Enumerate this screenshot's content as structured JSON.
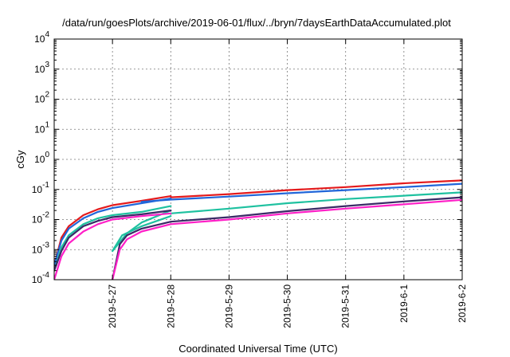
{
  "chart_data": {
    "type": "line",
    "title": "/data/run/goesPlots/archive/2019-06-01/flux/../bryn/7daysEarthDataAccumulated.plot",
    "xlabel": "Coordinated Universal Time (UTC)",
    "ylabel": "cGy",
    "y_scale": "log",
    "ylim": [
      0.0001,
      10000
    ],
    "xlim": [
      "2019-05-26",
      "2019-06-02"
    ],
    "grid": true,
    "legend": "none",
    "x_ticks": [
      "2019-5-27",
      "2019-5-28",
      "2019-5-29",
      "2019-5-30",
      "2019-5-31",
      "2019-6-1",
      "2019-6-2"
    ],
    "y_ticks": [
      {
        "value": 0.0001,
        "base": "10",
        "exp": "-4"
      },
      {
        "value": 0.001,
        "base": "10",
        "exp": "-3"
      },
      {
        "value": 0.01,
        "base": "10",
        "exp": "-2"
      },
      {
        "value": 0.1,
        "base": "10",
        "exp": "-1"
      },
      {
        "value": 1,
        "base": "10",
        "exp": "0"
      },
      {
        "value": 10,
        "base": "10",
        "exp": "1"
      },
      {
        "value": 100,
        "base": "10",
        "exp": "2"
      },
      {
        "value": 1000,
        "base": "10",
        "exp": "3"
      },
      {
        "value": 10000,
        "base": "10",
        "exp": "4"
      }
    ],
    "series": [
      {
        "color": "#e41a1c",
        "segments": [
          [
            [
              "2019-05-26T00:00",
              0.0003
            ],
            [
              "2019-05-26T03:00",
              0.0025
            ],
            [
              "2019-05-26T06:00",
              0.006
            ],
            [
              "2019-05-26T12:00",
              0.014
            ],
            [
              "2019-05-26T18:00",
              0.022
            ],
            [
              "2019-05-27T00:00",
              0.03
            ],
            [
              "2019-05-27T12:00",
              0.042
            ],
            [
              "2019-05-28T00:00",
              0.06
            ]
          ],
          [
            [
              "2019-05-28T00:00",
              0.055
            ],
            [
              "2019-05-29T00:00",
              0.07
            ],
            [
              "2019-05-30T00:00",
              0.095
            ],
            [
              "2019-05-31T00:00",
              0.12
            ],
            [
              "2019-06-01T00:00",
              0.16
            ],
            [
              "2019-06-02T00:00",
              0.2
            ]
          ]
        ]
      },
      {
        "color": "#2166d9",
        "segments": [
          [
            [
              "2019-05-26T00:00",
              0.0003
            ],
            [
              "2019-05-26T03:00",
              0.002
            ],
            [
              "2019-05-26T06:00",
              0.005
            ],
            [
              "2019-05-26T12:00",
              0.011
            ],
            [
              "2019-05-26T18:00",
              0.018
            ],
            [
              "2019-05-27T00:00",
              0.024
            ],
            [
              "2019-05-27T12:00",
              0.035
            ],
            [
              "2019-05-28T00:00",
              0.05
            ]
          ],
          [
            [
              "2019-05-27T12:00",
              0.039
            ],
            [
              "2019-05-28T00:00",
              0.046
            ],
            [
              "2019-05-29T00:00",
              0.058
            ],
            [
              "2019-05-30T00:00",
              0.075
            ],
            [
              "2019-05-31T00:00",
              0.095
            ],
            [
              "2019-06-01T00:00",
              0.12
            ],
            [
              "2019-06-02T00:00",
              0.155
            ]
          ]
        ]
      },
      {
        "color": "#1fc1a0",
        "segments": [
          [
            [
              "2019-05-26T00:00",
              0.0002
            ],
            [
              "2019-05-26T03:00",
              0.0012
            ],
            [
              "2019-05-26T06:00",
              0.003
            ],
            [
              "2019-05-26T12:00",
              0.007
            ],
            [
              "2019-05-26T18:00",
              0.011
            ],
            [
              "2019-05-27T00:00",
              0.014
            ],
            [
              "2019-05-27T12:00",
              0.018
            ],
            [
              "2019-05-28T00:00",
              0.028
            ]
          ],
          [
            [
              "2019-05-27T00:00",
              0.0009
            ],
            [
              "2019-05-27T04:00",
              0.003
            ],
            [
              "2019-05-27T12:00",
              0.006
            ],
            [
              "2019-05-28T00:00",
              0.013
            ]
          ],
          [
            [
              "2019-05-27T00:00",
              0.0009
            ],
            [
              "2019-05-27T06:00",
              0.0035
            ],
            [
              "2019-05-27T12:00",
              0.008
            ],
            [
              "2019-05-28T00:00",
              0.02
            ]
          ],
          [
            [
              "2019-05-28T00:00",
              0.016
            ],
            [
              "2019-05-29T00:00",
              0.023
            ],
            [
              "2019-05-30T00:00",
              0.035
            ],
            [
              "2019-05-31T00:00",
              0.048
            ],
            [
              "2019-06-01T00:00",
              0.062
            ],
            [
              "2019-06-02T00:00",
              0.08
            ]
          ]
        ]
      },
      {
        "color": "#3a2a66",
        "segments": [
          [
            [
              "2019-05-26T00:00",
              0.0002
            ],
            [
              "2019-05-26T03:00",
              0.0009
            ],
            [
              "2019-05-26T06:00",
              0.0025
            ],
            [
              "2019-05-26T12:00",
              0.006
            ],
            [
              "2019-05-26T18:00",
              0.009
            ],
            [
              "2019-05-27T00:00",
              0.012
            ],
            [
              "2019-05-27T12:00",
              0.015
            ],
            [
              "2019-05-28T00:00",
              0.02
            ]
          ],
          [
            [
              "2019-05-27T00:00",
              0.0001
            ],
            [
              "2019-05-27T03:00",
              0.0015
            ],
            [
              "2019-05-27T06:00",
              0.003
            ],
            [
              "2019-05-27T12:00",
              0.005
            ],
            [
              "2019-05-28T00:00",
              0.0085
            ],
            [
              "2019-05-29T00:00",
              0.012
            ],
            [
              "2019-05-30T00:00",
              0.019
            ],
            [
              "2019-05-31T00:00",
              0.028
            ],
            [
              "2019-06-01T00:00",
              0.04
            ],
            [
              "2019-06-02T00:00",
              0.055
            ]
          ]
        ]
      },
      {
        "color": "#ff1fc7",
        "segments": [
          [
            [
              "2019-05-26T00:00",
              0.0001
            ],
            [
              "2019-05-26T03:00",
              0.0006
            ],
            [
              "2019-05-26T06:00",
              0.0016
            ],
            [
              "2019-05-26T12:00",
              0.004
            ],
            [
              "2019-05-26T18:00",
              0.007
            ],
            [
              "2019-05-27T00:00",
              0.01
            ],
            [
              "2019-05-27T12:00",
              0.013
            ],
            [
              "2019-05-28T00:00",
              0.016
            ]
          ],
          [
            [
              "2019-05-27T00:00",
              0.0001
            ],
            [
              "2019-05-27T03:00",
              0.001
            ],
            [
              "2019-05-27T06:00",
              0.0022
            ],
            [
              "2019-05-27T12:00",
              0.004
            ],
            [
              "2019-05-28T00:00",
              0.007
            ],
            [
              "2019-05-29T00:00",
              0.01
            ],
            [
              "2019-05-30T00:00",
              0.016
            ],
            [
              "2019-05-31T00:00",
              0.023
            ],
            [
              "2019-06-01T00:00",
              0.032
            ],
            [
              "2019-06-02T00:00",
              0.045
            ]
          ]
        ]
      }
    ]
  }
}
